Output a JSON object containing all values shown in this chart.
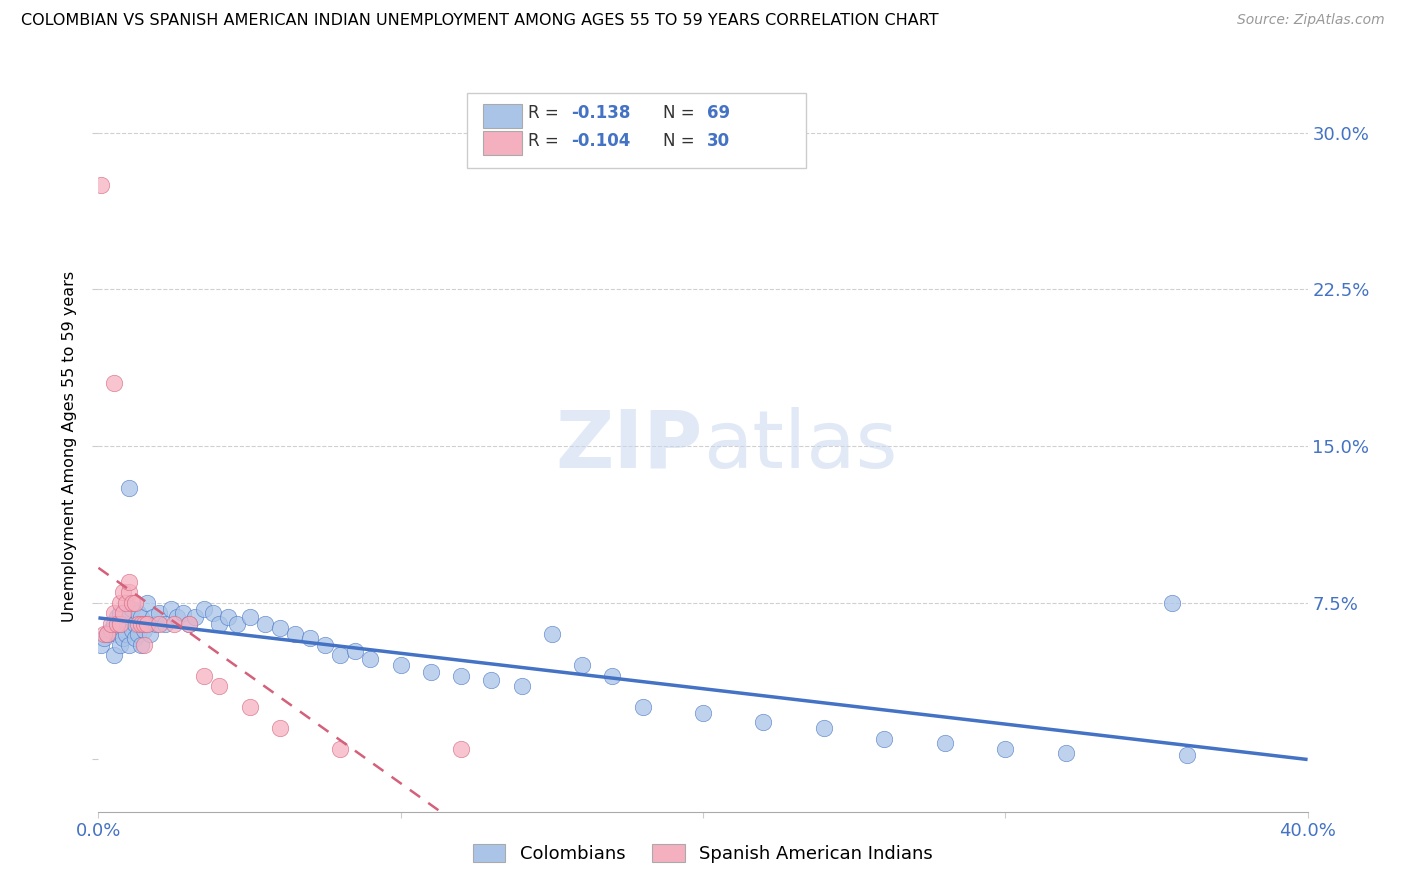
{
  "title": "COLOMBIAN VS SPANISH AMERICAN INDIAN UNEMPLOYMENT AMONG AGES 55 TO 59 YEARS CORRELATION CHART",
  "source": "Source: ZipAtlas.com",
  "ylabel": "Unemployment Among Ages 55 to 59 years",
  "xlim": [
    0.0,
    0.4
  ],
  "ylim": [
    -0.025,
    0.325
  ],
  "blue_R": -0.138,
  "blue_N": 69,
  "pink_R": -0.104,
  "pink_N": 30,
  "blue_color": "#aac4e8",
  "pink_color": "#f5b0c0",
  "blue_line_color": "#4472c4",
  "pink_line_color": "#d4607a",
  "grid_color": "#d0d0d0",
  "legend_label_blue": "Colombians",
  "legend_label_pink": "Spanish American Indians",
  "blue_x": [
    0.001,
    0.002,
    0.003,
    0.004,
    0.005,
    0.005,
    0.006,
    0.006,
    0.007,
    0.007,
    0.008,
    0.008,
    0.009,
    0.01,
    0.01,
    0.011,
    0.011,
    0.012,
    0.012,
    0.013,
    0.013,
    0.014,
    0.014,
    0.015,
    0.016,
    0.016,
    0.017,
    0.018,
    0.019,
    0.02,
    0.022,
    0.024,
    0.026,
    0.028,
    0.03,
    0.032,
    0.035,
    0.038,
    0.04,
    0.043,
    0.046,
    0.05,
    0.055,
    0.06,
    0.065,
    0.07,
    0.075,
    0.08,
    0.085,
    0.09,
    0.1,
    0.11,
    0.12,
    0.13,
    0.14,
    0.15,
    0.16,
    0.17,
    0.18,
    0.2,
    0.22,
    0.24,
    0.26,
    0.28,
    0.3,
    0.32,
    0.36,
    0.355,
    0.01
  ],
  "blue_y": [
    0.055,
    0.058,
    0.06,
    0.062,
    0.05,
    0.065,
    0.06,
    0.068,
    0.055,
    0.07,
    0.058,
    0.065,
    0.06,
    0.055,
    0.068,
    0.062,
    0.072,
    0.058,
    0.065,
    0.06,
    0.07,
    0.055,
    0.068,
    0.062,
    0.065,
    0.075,
    0.06,
    0.068,
    0.065,
    0.07,
    0.065,
    0.072,
    0.068,
    0.07,
    0.065,
    0.068,
    0.072,
    0.07,
    0.065,
    0.068,
    0.065,
    0.068,
    0.065,
    0.063,
    0.06,
    0.058,
    0.055,
    0.05,
    0.052,
    0.048,
    0.045,
    0.042,
    0.04,
    0.038,
    0.035,
    0.06,
    0.045,
    0.04,
    0.025,
    0.022,
    0.018,
    0.015,
    0.01,
    0.008,
    0.005,
    0.003,
    0.002,
    0.075,
    0.13
  ],
  "pink_x": [
    0.001,
    0.002,
    0.003,
    0.004,
    0.005,
    0.005,
    0.006,
    0.007,
    0.007,
    0.008,
    0.008,
    0.009,
    0.01,
    0.01,
    0.011,
    0.012,
    0.013,
    0.014,
    0.015,
    0.015,
    0.016,
    0.02,
    0.025,
    0.03,
    0.035,
    0.04,
    0.05,
    0.06,
    0.08,
    0.12
  ],
  "pink_y": [
    0.275,
    0.06,
    0.06,
    0.065,
    0.07,
    0.18,
    0.065,
    0.065,
    0.075,
    0.07,
    0.08,
    0.075,
    0.08,
    0.085,
    0.075,
    0.075,
    0.065,
    0.065,
    0.055,
    0.065,
    0.065,
    0.065,
    0.065,
    0.065,
    0.04,
    0.035,
    0.025,
    0.015,
    0.005,
    0.005
  ]
}
